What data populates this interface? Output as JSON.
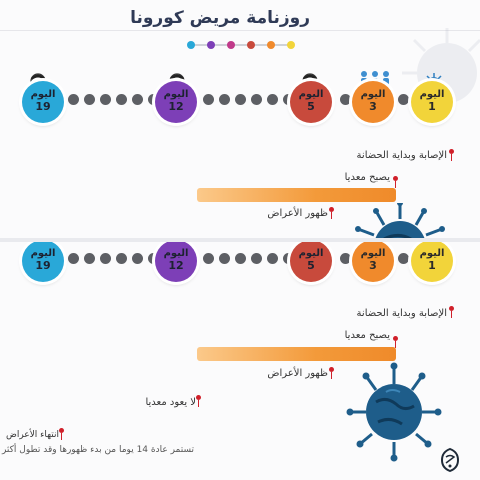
{
  "header": {
    "title": "روزنامة مريض كورونا",
    "legend_colors": [
      "#29a8d8",
      "#7d3fb7",
      "#c03a8a",
      "#c84a3c",
      "#f08a2c",
      "#f2d43a"
    ]
  },
  "days": [
    {
      "word": "اليوم",
      "number": "1",
      "color": "#f2d43a"
    },
    {
      "word": "اليوم",
      "number": "3",
      "color": "#f08a2c"
    },
    {
      "word": "اليوم",
      "number": "5",
      "color": "#c84a3c"
    },
    {
      "word": "اليوم",
      "number": "12",
      "color": "#7d3fb7"
    },
    {
      "word": "اليوم",
      "number": "19",
      "color": "#29a8d8"
    }
  ],
  "stages": {
    "infection": "الإصابة وبداية الحضانة",
    "contagious": "يصبح معديا",
    "symptoms": "ظهور الأعراض",
    "not_contagious": "لا يعود معديا",
    "symptoms_end": "انتهاء الأعراض"
  },
  "footnote": "تستمر عادة 14 يوما من بدء ظهورها وقد تطول أكثر",
  "icons": {
    "person": "patient-icon",
    "virus": "coronavirus-icon",
    "logo": "aljazeera-logo-icon",
    "people": "people-group-icon"
  }
}
